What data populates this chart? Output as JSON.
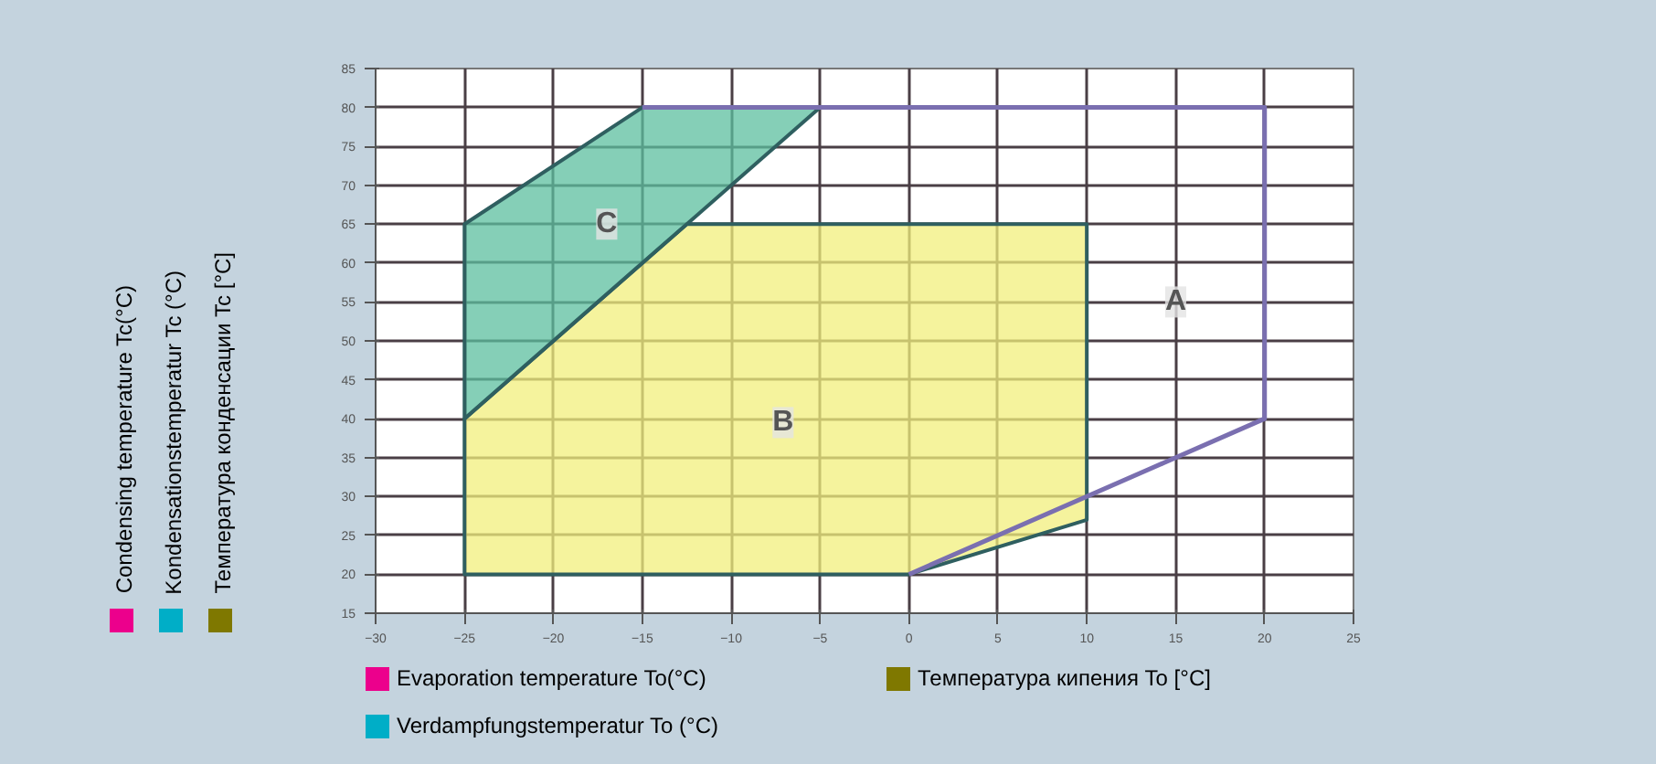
{
  "chart_data": {
    "type": "area",
    "series": [
      {
        "name": "A",
        "type": "line",
        "color": "#7a6fb0",
        "x": [
          -15,
          20,
          20,
          0
        ],
        "values": [
          80,
          80,
          40,
          20
        ]
      },
      {
        "name": "B",
        "color": "#f2ef7c",
        "x": [
          -25,
          -25,
          -12.5,
          10,
          10,
          0,
          -25
        ],
        "values": [
          20,
          40,
          65,
          65,
          27,
          20,
          20
        ]
      },
      {
        "name": "C",
        "color": "#5cbf9f",
        "x": [
          -25,
          -25,
          -15,
          -5,
          -15,
          -25
        ],
        "values": [
          40,
          65,
          80,
          80,
          60,
          40
        ]
      }
    ],
    "xlim": [
      -30,
      25
    ],
    "ylim": [
      15,
      85
    ],
    "xticks": [
      -30,
      -25,
      -20,
      -15,
      -10,
      -5,
      0,
      5,
      10,
      15,
      20,
      25
    ],
    "yticks": [
      15,
      20,
      25,
      30,
      35,
      40,
      45,
      50,
      55,
      60,
      65,
      70,
      75,
      80,
      85
    ],
    "grid": true,
    "ylabel": [
      "Condensing temperature Tc(°C)",
      "Kondensationstemperatur Tc (°C)",
      "Температура конденсации Tc [°C]"
    ],
    "xlabel": [
      "Evaporation temperature To(°C)",
      "Verdampfungstemperatur To (°C)",
      "Температура кипения To [°C]"
    ],
    "tick_labels": true
  }
}
